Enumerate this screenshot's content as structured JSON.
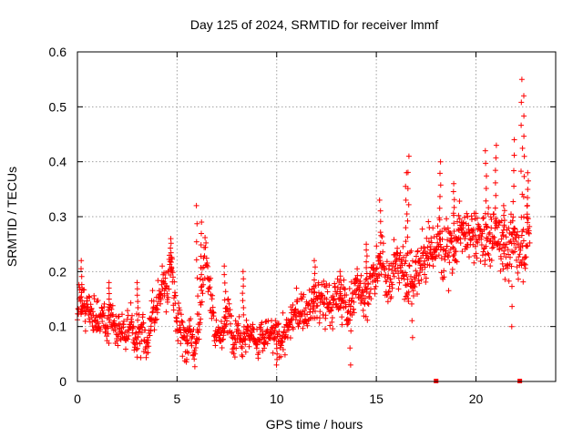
{
  "chart_data": {
    "type": "scatter",
    "title": "Day 125 of 2024, SRMTID for receiver lmmf",
    "xlabel": "GPS time / hours",
    "ylabel": "SRMTID / TECUs",
    "xlim": [
      0,
      24
    ],
    "ylim": [
      0,
      0.6
    ],
    "x_ticks": [
      0,
      5,
      10,
      15,
      20
    ],
    "y_ticks": [
      0,
      0.1,
      0.2,
      0.3,
      0.4,
      0.5,
      0.6
    ],
    "grid": true,
    "marker": "plus",
    "colors": {
      "series": "#ff0000",
      "axis": "#000000",
      "grid": "#a0a0a0"
    },
    "x_range_hours": [
      0,
      22.7
    ],
    "trend": [
      {
        "x": 0.0,
        "y": 0.12
      },
      {
        "x": 1.0,
        "y": 0.11
      },
      {
        "x": 2.0,
        "y": 0.11
      },
      {
        "x": 3.0,
        "y": 0.1
      },
      {
        "x": 4.0,
        "y": 0.12
      },
      {
        "x": 4.7,
        "y": 0.2
      },
      {
        "x": 5.3,
        "y": 0.1
      },
      {
        "x": 6.0,
        "y": 0.09
      },
      {
        "x": 6.4,
        "y": 0.2
      },
      {
        "x": 7.0,
        "y": 0.09
      },
      {
        "x": 8.0,
        "y": 0.12
      },
      {
        "x": 9.0,
        "y": 0.08
      },
      {
        "x": 10.0,
        "y": 0.07
      },
      {
        "x": 11.0,
        "y": 0.12
      },
      {
        "x": 12.0,
        "y": 0.14
      },
      {
        "x": 13.0,
        "y": 0.14
      },
      {
        "x": 14.0,
        "y": 0.16
      },
      {
        "x": 15.0,
        "y": 0.19
      },
      {
        "x": 16.0,
        "y": 0.21
      },
      {
        "x": 17.0,
        "y": 0.2
      },
      {
        "x": 18.0,
        "y": 0.25
      },
      {
        "x": 19.0,
        "y": 0.26
      },
      {
        "x": 20.0,
        "y": 0.25
      },
      {
        "x": 21.0,
        "y": 0.27
      },
      {
        "x": 22.0,
        "y": 0.24
      },
      {
        "x": 22.7,
        "y": 0.28
      }
    ],
    "spikes": [
      {
        "x": 0.2,
        "y": 0.22
      },
      {
        "x": 1.6,
        "y": 0.18
      },
      {
        "x": 3.0,
        "y": 0.18
      },
      {
        "x": 4.7,
        "y": 0.26
      },
      {
        "x": 6.0,
        "y": 0.32
      },
      {
        "x": 6.2,
        "y": 0.29
      },
      {
        "x": 7.4,
        "y": 0.21
      },
      {
        "x": 8.3,
        "y": 0.2
      },
      {
        "x": 11.9,
        "y": 0.22
      },
      {
        "x": 13.2,
        "y": 0.2
      },
      {
        "x": 14.5,
        "y": 0.25
      },
      {
        "x": 15.2,
        "y": 0.33
      },
      {
        "x": 16.6,
        "y": 0.41
      },
      {
        "x": 16.5,
        "y": 0.38
      },
      {
        "x": 18.2,
        "y": 0.4
      },
      {
        "x": 18.9,
        "y": 0.36
      },
      {
        "x": 20.5,
        "y": 0.42
      },
      {
        "x": 21.0,
        "y": 0.43
      },
      {
        "x": 21.9,
        "y": 0.44
      },
      {
        "x": 22.3,
        "y": 0.55
      },
      {
        "x": 22.4,
        "y": 0.52
      },
      {
        "x": 22.6,
        "y": 0.38
      },
      {
        "x": 21.4,
        "y": 0.32
      }
    ],
    "dips": [
      {
        "x": 13.7,
        "y": 0.03
      },
      {
        "x": 10.0,
        "y": 0.03
      },
      {
        "x": 5.5,
        "y": 0.04
      },
      {
        "x": 21.8,
        "y": 0.1
      },
      {
        "x": 16.8,
        "y": 0.08
      }
    ],
    "axis_markers": [
      {
        "x": 18.0,
        "y": 0
      },
      {
        "x": 22.2,
        "y": 0
      }
    ]
  }
}
